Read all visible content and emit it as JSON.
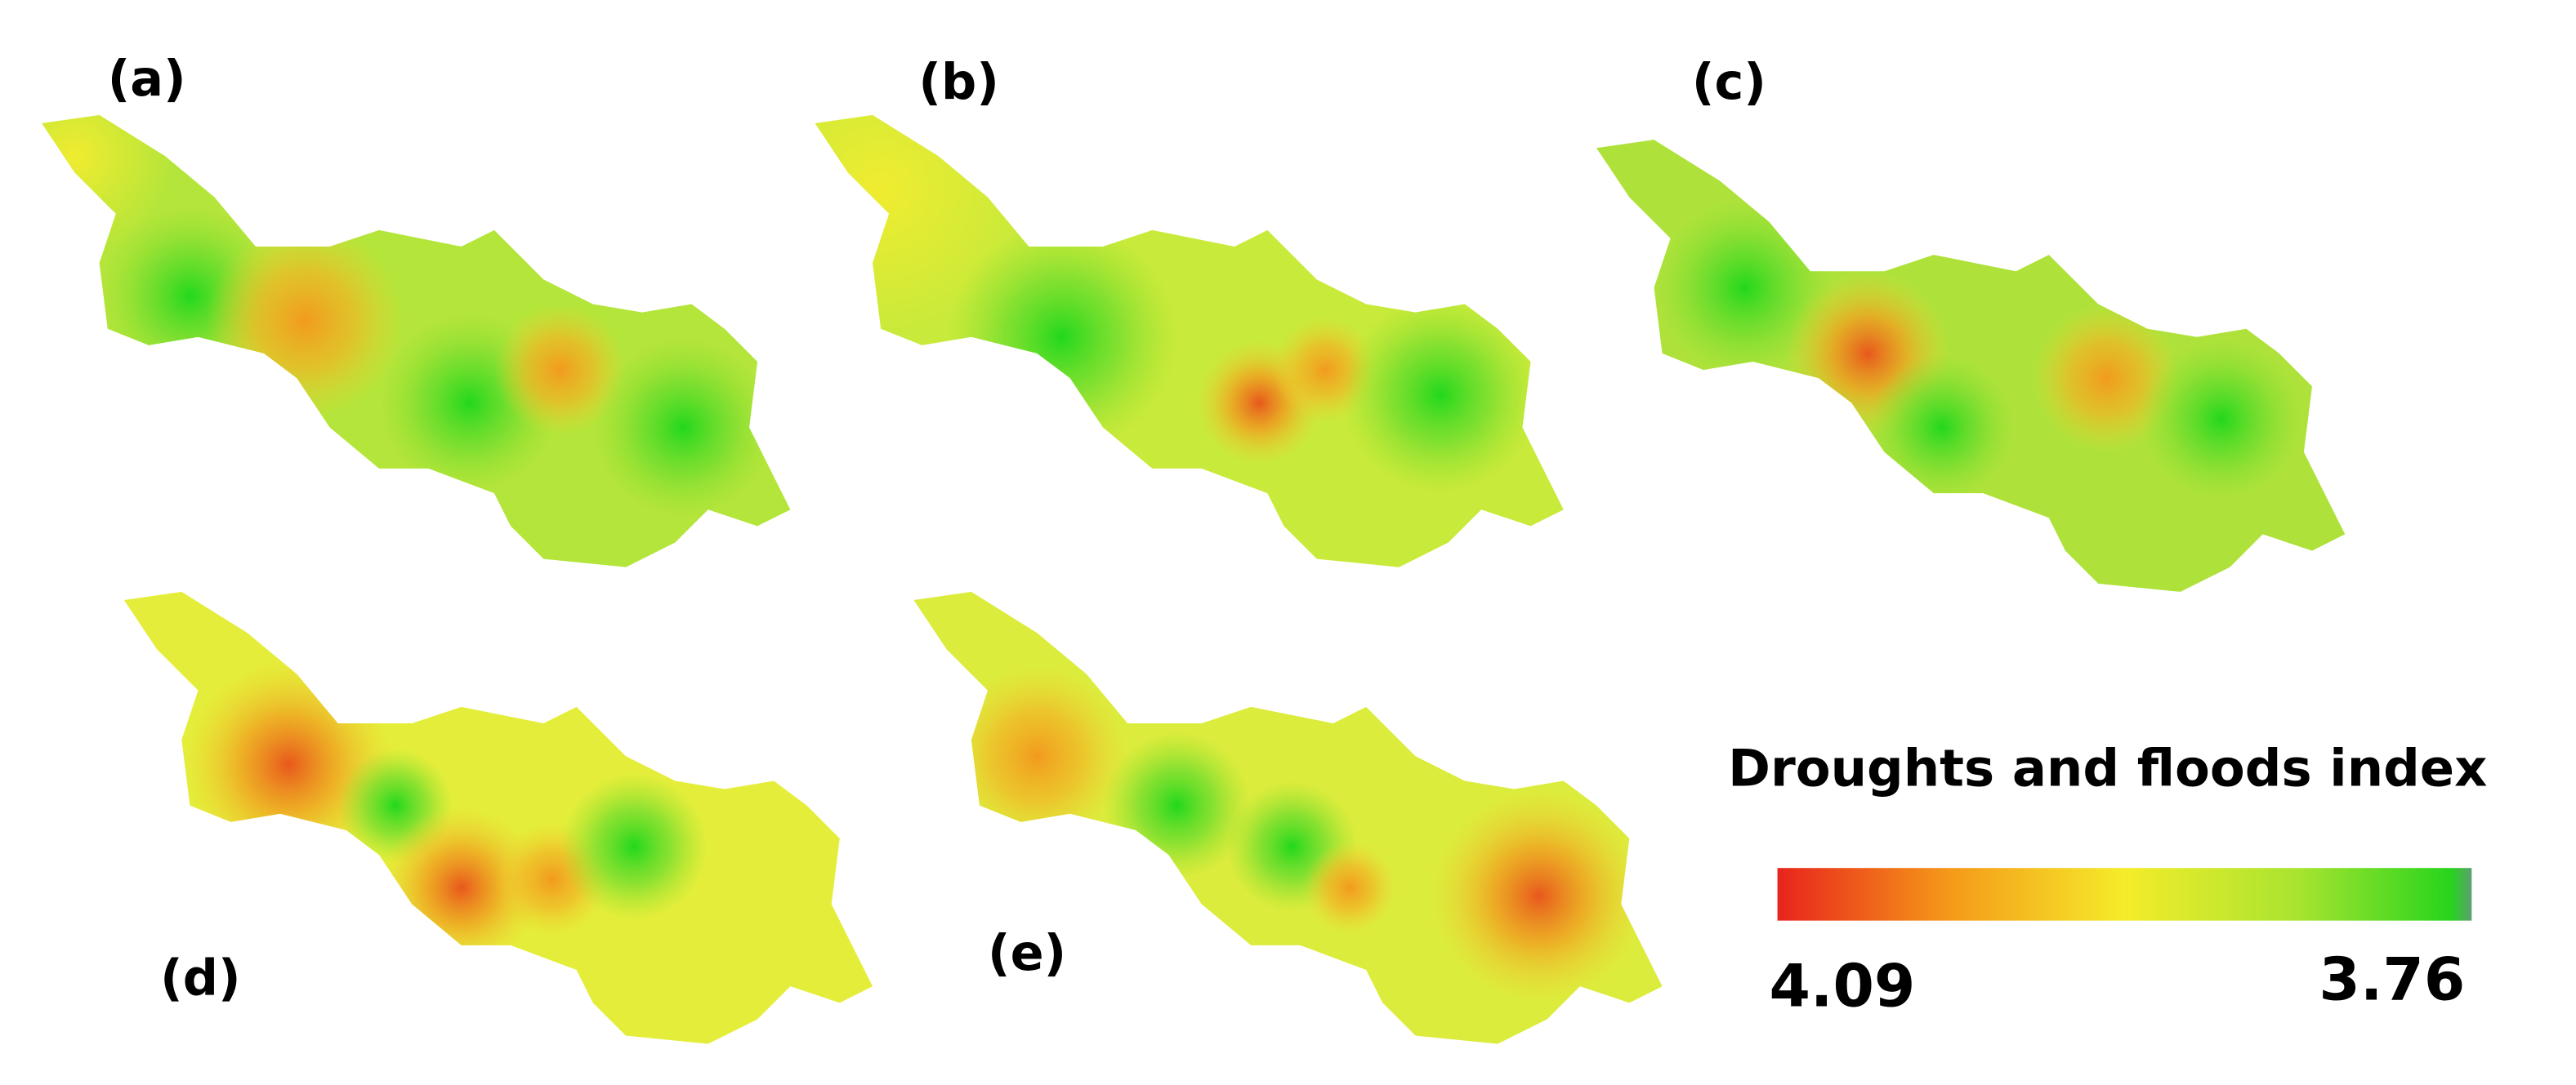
{
  "panels": [
    {
      "label": "(a)"
    },
    {
      "label": "(b)"
    },
    {
      "label": "(c)"
    },
    {
      "label": "(d)"
    },
    {
      "label": "(e)"
    }
  ],
  "legend": {
    "title": "Droughts and floods index",
    "min_label": "4.09",
    "max_label": "3.76"
  }
}
